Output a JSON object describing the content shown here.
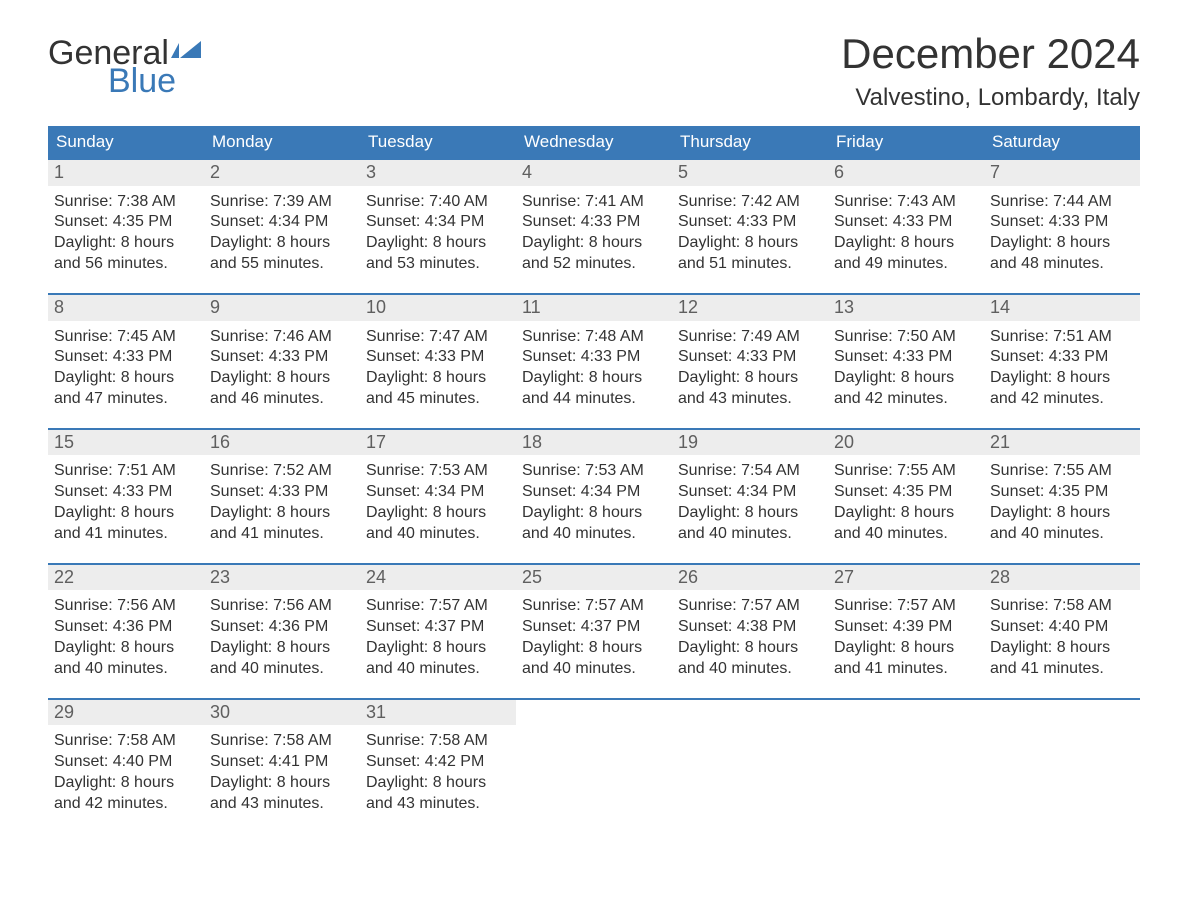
{
  "logo": {
    "word1": "General",
    "word2": "Blue",
    "brand_color": "#3a79b7"
  },
  "title": "December 2024",
  "location": "Valvestino, Lombardy, Italy",
  "colors": {
    "header_bg": "#3a79b7",
    "header_text": "#ffffff",
    "daynum_bg": "#ededed",
    "daynum_text": "#5f5f5f",
    "body_text": "#333333",
    "rule": "#3a79b7",
    "page_bg": "#ffffff"
  },
  "fonts": {
    "title_size_pt": 42,
    "location_size_pt": 24,
    "dow_size_pt": 17,
    "daynum_size_pt": 18,
    "body_size_pt": 16
  },
  "days_of_week": [
    "Sunday",
    "Monday",
    "Tuesday",
    "Wednesday",
    "Thursday",
    "Friday",
    "Saturday"
  ],
  "weeks": [
    [
      {
        "n": "1",
        "sunrise": "Sunrise: 7:38 AM",
        "sunset": "Sunset: 4:35 PM",
        "d1": "Daylight: 8 hours",
        "d2": "and 56 minutes."
      },
      {
        "n": "2",
        "sunrise": "Sunrise: 7:39 AM",
        "sunset": "Sunset: 4:34 PM",
        "d1": "Daylight: 8 hours",
        "d2": "and 55 minutes."
      },
      {
        "n": "3",
        "sunrise": "Sunrise: 7:40 AM",
        "sunset": "Sunset: 4:34 PM",
        "d1": "Daylight: 8 hours",
        "d2": "and 53 minutes."
      },
      {
        "n": "4",
        "sunrise": "Sunrise: 7:41 AM",
        "sunset": "Sunset: 4:33 PM",
        "d1": "Daylight: 8 hours",
        "d2": "and 52 minutes."
      },
      {
        "n": "5",
        "sunrise": "Sunrise: 7:42 AM",
        "sunset": "Sunset: 4:33 PM",
        "d1": "Daylight: 8 hours",
        "d2": "and 51 minutes."
      },
      {
        "n": "6",
        "sunrise": "Sunrise: 7:43 AM",
        "sunset": "Sunset: 4:33 PM",
        "d1": "Daylight: 8 hours",
        "d2": "and 49 minutes."
      },
      {
        "n": "7",
        "sunrise": "Sunrise: 7:44 AM",
        "sunset": "Sunset: 4:33 PM",
        "d1": "Daylight: 8 hours",
        "d2": "and 48 minutes."
      }
    ],
    [
      {
        "n": "8",
        "sunrise": "Sunrise: 7:45 AM",
        "sunset": "Sunset: 4:33 PM",
        "d1": "Daylight: 8 hours",
        "d2": "and 47 minutes."
      },
      {
        "n": "9",
        "sunrise": "Sunrise: 7:46 AM",
        "sunset": "Sunset: 4:33 PM",
        "d1": "Daylight: 8 hours",
        "d2": "and 46 minutes."
      },
      {
        "n": "10",
        "sunrise": "Sunrise: 7:47 AM",
        "sunset": "Sunset: 4:33 PM",
        "d1": "Daylight: 8 hours",
        "d2": "and 45 minutes."
      },
      {
        "n": "11",
        "sunrise": "Sunrise: 7:48 AM",
        "sunset": "Sunset: 4:33 PM",
        "d1": "Daylight: 8 hours",
        "d2": "and 44 minutes."
      },
      {
        "n": "12",
        "sunrise": "Sunrise: 7:49 AM",
        "sunset": "Sunset: 4:33 PM",
        "d1": "Daylight: 8 hours",
        "d2": "and 43 minutes."
      },
      {
        "n": "13",
        "sunrise": "Sunrise: 7:50 AM",
        "sunset": "Sunset: 4:33 PM",
        "d1": "Daylight: 8 hours",
        "d2": "and 42 minutes."
      },
      {
        "n": "14",
        "sunrise": "Sunrise: 7:51 AM",
        "sunset": "Sunset: 4:33 PM",
        "d1": "Daylight: 8 hours",
        "d2": "and 42 minutes."
      }
    ],
    [
      {
        "n": "15",
        "sunrise": "Sunrise: 7:51 AM",
        "sunset": "Sunset: 4:33 PM",
        "d1": "Daylight: 8 hours",
        "d2": "and 41 minutes."
      },
      {
        "n": "16",
        "sunrise": "Sunrise: 7:52 AM",
        "sunset": "Sunset: 4:33 PM",
        "d1": "Daylight: 8 hours",
        "d2": "and 41 minutes."
      },
      {
        "n": "17",
        "sunrise": "Sunrise: 7:53 AM",
        "sunset": "Sunset: 4:34 PM",
        "d1": "Daylight: 8 hours",
        "d2": "and 40 minutes."
      },
      {
        "n": "18",
        "sunrise": "Sunrise: 7:53 AM",
        "sunset": "Sunset: 4:34 PM",
        "d1": "Daylight: 8 hours",
        "d2": "and 40 minutes."
      },
      {
        "n": "19",
        "sunrise": "Sunrise: 7:54 AM",
        "sunset": "Sunset: 4:34 PM",
        "d1": "Daylight: 8 hours",
        "d2": "and 40 minutes."
      },
      {
        "n": "20",
        "sunrise": "Sunrise: 7:55 AM",
        "sunset": "Sunset: 4:35 PM",
        "d1": "Daylight: 8 hours",
        "d2": "and 40 minutes."
      },
      {
        "n": "21",
        "sunrise": "Sunrise: 7:55 AM",
        "sunset": "Sunset: 4:35 PM",
        "d1": "Daylight: 8 hours",
        "d2": "and 40 minutes."
      }
    ],
    [
      {
        "n": "22",
        "sunrise": "Sunrise: 7:56 AM",
        "sunset": "Sunset: 4:36 PM",
        "d1": "Daylight: 8 hours",
        "d2": "and 40 minutes."
      },
      {
        "n": "23",
        "sunrise": "Sunrise: 7:56 AM",
        "sunset": "Sunset: 4:36 PM",
        "d1": "Daylight: 8 hours",
        "d2": "and 40 minutes."
      },
      {
        "n": "24",
        "sunrise": "Sunrise: 7:57 AM",
        "sunset": "Sunset: 4:37 PM",
        "d1": "Daylight: 8 hours",
        "d2": "and 40 minutes."
      },
      {
        "n": "25",
        "sunrise": "Sunrise: 7:57 AM",
        "sunset": "Sunset: 4:37 PM",
        "d1": "Daylight: 8 hours",
        "d2": "and 40 minutes."
      },
      {
        "n": "26",
        "sunrise": "Sunrise: 7:57 AM",
        "sunset": "Sunset: 4:38 PM",
        "d1": "Daylight: 8 hours",
        "d2": "and 40 minutes."
      },
      {
        "n": "27",
        "sunrise": "Sunrise: 7:57 AM",
        "sunset": "Sunset: 4:39 PM",
        "d1": "Daylight: 8 hours",
        "d2": "and 41 minutes."
      },
      {
        "n": "28",
        "sunrise": "Sunrise: 7:58 AM",
        "sunset": "Sunset: 4:40 PM",
        "d1": "Daylight: 8 hours",
        "d2": "and 41 minutes."
      }
    ],
    [
      {
        "n": "29",
        "sunrise": "Sunrise: 7:58 AM",
        "sunset": "Sunset: 4:40 PM",
        "d1": "Daylight: 8 hours",
        "d2": "and 42 minutes."
      },
      {
        "n": "30",
        "sunrise": "Sunrise: 7:58 AM",
        "sunset": "Sunset: 4:41 PM",
        "d1": "Daylight: 8 hours",
        "d2": "and 43 minutes."
      },
      {
        "n": "31",
        "sunrise": "Sunrise: 7:58 AM",
        "sunset": "Sunset: 4:42 PM",
        "d1": "Daylight: 8 hours",
        "d2": "and 43 minutes."
      },
      null,
      null,
      null,
      null
    ]
  ]
}
